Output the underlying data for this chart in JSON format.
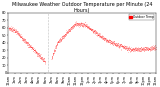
{
  "title": "Milwaukee Weather Outdoor Temperature per Minute (24 Hours)",
  "line_color": "#FF0000",
  "bg_color": "#FFFFFF",
  "plot_bg": "#FFFFFF",
  "ylim": [
    0,
    80
  ],
  "xlim": [
    0,
    1440
  ],
  "vline_x": 390,
  "vline_color": "#888888",
  "vline_style": "dotted",
  "legend_label": "Outdoor Temp",
  "legend_color": "#FF0000",
  "xtick_interval": 60,
  "ytick_vals": [
    0,
    10,
    20,
    30,
    40,
    50,
    60,
    70,
    80
  ],
  "title_fontsize": 3.5,
  "tick_fontsize": 2.5
}
